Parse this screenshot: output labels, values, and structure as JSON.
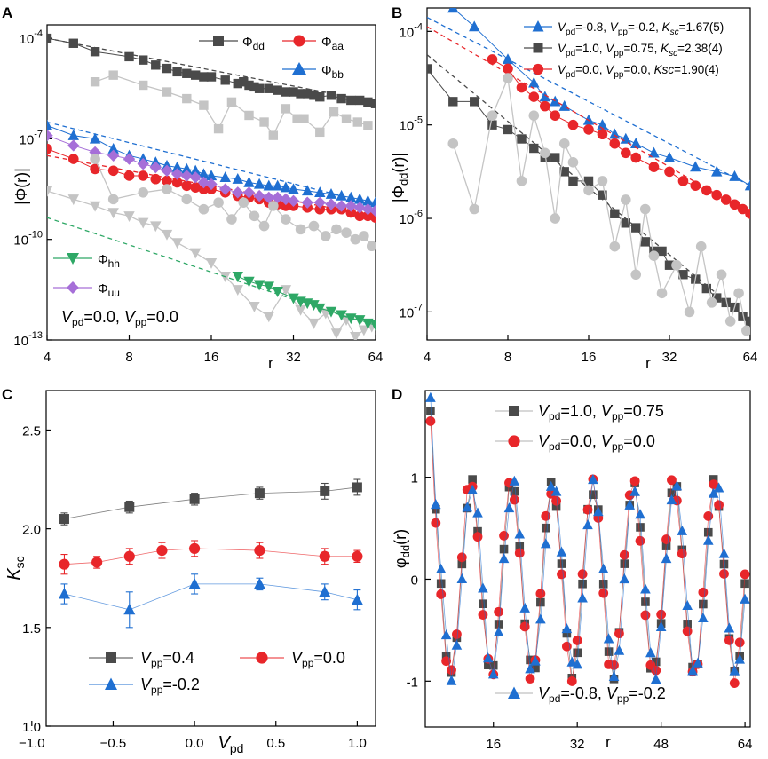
{
  "chart_data": [
    {
      "panel": "A",
      "type": "line",
      "scale": "log10-log2",
      "xlabel": "r",
      "ylabel": "|Φ(r)|",
      "xticks": [
        4,
        8,
        16,
        32,
        64
      ],
      "yticks": [
        {
          "value": -4,
          "label": "10",
          "sup": "-4"
        },
        {
          "value": -7,
          "label": "10",
          "sup": "-7"
        },
        {
          "value": -10,
          "label": "10",
          "sup": "-10"
        },
        {
          "value": -13,
          "label": "10",
          "sup": "-13"
        }
      ],
      "xlim": [
        4,
        64
      ],
      "ylim_log10": [
        -13,
        -3.6
      ],
      "annotation": {
        "V": "V",
        "pd": "pd",
        "eq1": "=0.0, ",
        "pp": "pp",
        "eq2": "=0.0"
      },
      "legend": [
        {
          "sym": "Φ",
          "sub": "dd"
        },
        {
          "sym": "Φ",
          "sub": "aa"
        },
        {
          "sym": "Φ",
          "sub": "bb"
        },
        {
          "sym": "Φ",
          "sub": "hh"
        },
        {
          "sym": "Φ",
          "sub": "uu"
        }
      ],
      "series": [
        {
          "name": "Φdd",
          "marker": "square",
          "color": "#4a4a4a",
          "fit": [
            [
              4,
              -4.0
            ],
            [
              64,
              -5.9
            ]
          ],
          "x": [
            4,
            5,
            6,
            8,
            9,
            10,
            11,
            12,
            13,
            14,
            15,
            16,
            18,
            20,
            21,
            22,
            23,
            24,
            26,
            28,
            30,
            32,
            34,
            36,
            38,
            40,
            44,
            48,
            52,
            56,
            60,
            64
          ],
          "y": [
            -4.0,
            -4.15,
            -4.4,
            -4.55,
            -4.65,
            -4.8,
            -4.9,
            -5.0,
            -5.05,
            -5.1,
            -5.15,
            -5.15,
            -5.25,
            -5.35,
            -5.3,
            -5.4,
            -5.45,
            -5.5,
            -5.5,
            -5.55,
            -5.6,
            -5.6,
            -5.65,
            -5.65,
            -5.7,
            -5.75,
            -5.7,
            -5.8,
            -5.85,
            -5.85,
            -5.9,
            -5.95
          ]
        },
        {
          "name": "Φdd gray",
          "marker": "square",
          "color": "#c4c4c4",
          "x": [
            6,
            7,
            9,
            11,
            13,
            15,
            17,
            19,
            22,
            25,
            27,
            30,
            33,
            35,
            40,
            45,
            50,
            55,
            60
          ],
          "y": [
            -5.3,
            -5.1,
            -5.4,
            -5.6,
            -5.8,
            -6.0,
            -6.7,
            -5.9,
            -6.3,
            -6.5,
            -6.9,
            -6.1,
            -6.4,
            -6.4,
            -6.8,
            -6.2,
            -6.4,
            -6.5,
            -6.6
          ]
        },
        {
          "name": "Φaa",
          "marker": "circle",
          "color": "#e8262a",
          "fit": [
            [
              4,
              -7.5
            ],
            [
              64,
              -9.3
            ]
          ],
          "x": [
            4,
            5,
            6,
            7,
            8,
            9,
            10,
            11,
            12,
            13,
            14,
            15,
            16,
            18,
            20,
            22,
            24,
            26,
            28,
            30,
            32,
            36,
            40,
            44,
            48,
            52,
            56,
            60,
            64
          ],
          "y": [
            -7.3,
            -7.6,
            -7.9,
            -7.95,
            -8.1,
            -8.1,
            -8.2,
            -8.25,
            -8.3,
            -8.4,
            -8.45,
            -8.5,
            -8.5,
            -8.6,
            -8.7,
            -8.75,
            -8.8,
            -8.9,
            -8.95,
            -9.0,
            -9.0,
            -9.05,
            -9.1,
            -9.1,
            -9.1,
            -9.2,
            -9.3,
            -9.3,
            -9.35
          ]
        },
        {
          "name": "Φbb",
          "marker": "triangle",
          "color": "#1f6fd1",
          "fit": [
            [
              4,
              -6.5
            ],
            [
              64,
              -8.95
            ]
          ],
          "x": [
            4,
            5,
            6,
            7,
            8,
            9,
            10,
            11,
            12,
            13,
            14,
            15,
            16,
            18,
            20,
            22,
            24,
            26,
            28,
            30,
            32,
            36,
            40,
            44,
            48,
            52,
            56,
            60,
            64
          ],
          "y": [
            -6.6,
            -6.9,
            -7.0,
            -7.3,
            -7.5,
            -7.6,
            -7.7,
            -7.8,
            -7.85,
            -7.9,
            -7.95,
            -8.05,
            -8.1,
            -8.15,
            -8.2,
            -8.3,
            -8.35,
            -8.4,
            -8.4,
            -8.45,
            -8.5,
            -8.55,
            -8.6,
            -8.65,
            -8.7,
            -8.75,
            -8.8,
            -8.85,
            -8.9
          ]
        },
        {
          "name": "Φuu",
          "marker": "diamond",
          "color": "#a66fd8",
          "x": [
            4,
            5,
            6,
            7,
            8,
            9,
            10,
            11,
            12,
            13,
            14,
            15,
            16,
            18,
            20,
            22,
            24,
            26,
            28,
            30,
            32,
            36,
            40,
            44,
            48,
            52,
            56,
            60,
            64
          ],
          "y": [
            -6.9,
            -7.2,
            -7.4,
            -7.5,
            -7.6,
            -7.75,
            -7.85,
            -7.95,
            -8.05,
            -8.1,
            -8.15,
            -8.3,
            -8.35,
            -8.5,
            -8.6,
            -8.6,
            -8.7,
            -8.75,
            -8.75,
            -8.8,
            -8.85,
            -8.9,
            -8.9,
            -8.95,
            -9.0,
            -9.0,
            -9.05,
            -9.1,
            -9.15
          ]
        },
        {
          "name": "Φaa gray",
          "marker": "circle",
          "color": "#c4c4c4",
          "x": [
            6,
            7,
            9,
            11,
            13,
            15,
            17,
            19,
            21,
            23,
            25,
            27,
            30,
            34,
            38,
            42,
            46,
            50,
            54,
            58,
            62
          ],
          "y": [
            -7.6,
            -8.8,
            -8.6,
            -8.5,
            -8.8,
            -9.1,
            -8.9,
            -9.4,
            -8.9,
            -9.3,
            -9.6,
            -9.0,
            -9.4,
            -9.7,
            -9.6,
            -9.9,
            -9.7,
            -9.8,
            -10.0,
            -9.9,
            -10.2
          ]
        },
        {
          "name": "Φhh gray",
          "marker": "triangle-down",
          "color": "#c4c4c4",
          "x": [
            4,
            5,
            6,
            7,
            8,
            9,
            10,
            11,
            12,
            14,
            16,
            18,
            20,
            23,
            26,
            30,
            34,
            38,
            42,
            46,
            50,
            54,
            58,
            62
          ],
          "y": [
            -8.55,
            -8.8,
            -9.0,
            -9.2,
            -9.3,
            -9.5,
            -9.6,
            -9.85,
            -10.1,
            -10.4,
            -10.7,
            -11.1,
            -11.5,
            -12.0,
            -12.3,
            -11.5,
            -12.1,
            -12.5,
            -12.2,
            -12.8,
            -12.4,
            -12.9,
            -12.7,
            -12.6
          ]
        },
        {
          "name": "Φhh",
          "marker": "triangle-down",
          "color": "#2ea866",
          "fit": [
            [
              4,
              -9.35
            ],
            [
              64,
              -12.6
            ]
          ],
          "x": [
            20,
            22,
            24,
            26,
            28,
            32,
            34,
            36,
            38,
            40,
            44,
            48,
            52,
            56,
            60,
            64
          ],
          "y": [
            -11.1,
            -11.25,
            -11.35,
            -11.4,
            -11.55,
            -11.75,
            -11.85,
            -11.9,
            -11.95,
            -12.05,
            -12.15,
            -12.25,
            -12.35,
            -12.4,
            -12.5,
            -12.55
          ]
        }
      ]
    },
    {
      "panel": "B",
      "type": "line",
      "scale": "log10-log2",
      "xlabel": "r",
      "ylabel": "|Φ_dd(r)|",
      "xticks": [
        4,
        8,
        16,
        32,
        64
      ],
      "yticks": [
        {
          "value": -4,
          "label": "10",
          "sup": "-4"
        },
        {
          "value": -5,
          "label": "10",
          "sup": "-5"
        },
        {
          "value": -6,
          "label": "10",
          "sup": "-6"
        },
        {
          "value": -7,
          "label": "10",
          "sup": "-7"
        }
      ],
      "xlim": [
        4,
        64
      ],
      "ylim_log10": [
        -7.3,
        -3.75
      ],
      "legend": [
        {
          "color": "#1f6fd1",
          "marker": "triangle",
          "a": "=-0.8, ",
          "b": "=-0.2, ",
          "c": "=1.67(5)",
          "kscItalicSub": true
        },
        {
          "color": "#4a4a4a",
          "marker": "square",
          "a": "=1.0, ",
          "b": "=0.75, ",
          "c": "=2.38(4)",
          "kscItalicSub": true
        },
        {
          "color": "#e8262a",
          "marker": "circle",
          "a": "=0.0, ",
          "b": "=0.0, ",
          "c": "=1.90(4)",
          "kscItalicSub": false
        }
      ],
      "series": [
        {
          "name": "Vpd=-0.8, Vpp=-0.2",
          "marker": "triangle",
          "color": "#1f6fd1",
          "fit": [
            [
              4,
              -3.85
            ],
            [
              64,
              -5.65
            ]
          ],
          "x": [
            5,
            6,
            8,
            10,
            11,
            12,
            13,
            16,
            18,
            20,
            22,
            24,
            28,
            32,
            40,
            48,
            56,
            64
          ],
          "y": [
            -3.75,
            -3.95,
            -4.3,
            -4.55,
            -4.7,
            -4.75,
            -4.8,
            -4.95,
            -5.0,
            -5.1,
            -5.15,
            -5.2,
            -5.3,
            -5.35,
            -5.45,
            -5.5,
            -5.55,
            -5.65
          ]
        },
        {
          "name": "Vpd=0.0, Vpp=0.0",
          "marker": "circle",
          "color": "#e8262a",
          "fit": [
            [
              4,
              -3.95
            ],
            [
              64,
              -5.95
            ]
          ],
          "x": [
            7,
            8,
            9,
            10,
            11,
            12,
            14,
            16,
            18,
            20,
            22,
            24,
            28,
            32,
            36,
            40,
            44,
            48,
            52,
            56,
            60,
            64
          ],
          "y": [
            -4.3,
            -4.4,
            -4.6,
            -4.7,
            -4.8,
            -4.9,
            -5.0,
            -5.05,
            -5.1,
            -5.2,
            -5.3,
            -5.35,
            -5.45,
            -5.5,
            -5.6,
            -5.65,
            -5.7,
            -5.75,
            -5.8,
            -5.85,
            -5.9,
            -5.95
          ]
        },
        {
          "name": "Vpd=1.0, Vpp=0.75",
          "marker": "square",
          "color": "#4a4a4a",
          "fit": [
            [
              4,
              -4.25
            ],
            [
              64,
              -7.1
            ]
          ],
          "x": [
            4,
            5,
            6,
            7,
            8,
            9,
            10,
            11,
            12,
            13,
            14,
            16,
            18,
            20,
            22,
            24,
            26,
            28,
            30,
            32,
            36,
            40,
            44,
            48,
            52,
            56,
            60,
            64
          ],
          "y": [
            -4.4,
            -4.75,
            -4.75,
            -5.0,
            -5.05,
            -5.15,
            -5.25,
            -5.35,
            -5.35,
            -5.5,
            -5.6,
            -5.6,
            -5.75,
            -5.95,
            -6.05,
            -6.1,
            -6.25,
            -6.35,
            -6.35,
            -6.5,
            -6.6,
            -6.65,
            -6.75,
            -6.85,
            -6.9,
            -6.95,
            -7.05,
            -7.1
          ]
        },
        {
          "name": "gray",
          "marker": "circle",
          "color": "#c4c4c4",
          "x": [
            5,
            6,
            7,
            8,
            9,
            10,
            11,
            12,
            13,
            14,
            16,
            18,
            20,
            22,
            24,
            26,
            28,
            30,
            34,
            38,
            42,
            46,
            50,
            54,
            58,
            62
          ],
          "y": [
            -5.2,
            -5.9,
            -4.9,
            -4.5,
            -5.6,
            -4.9,
            -5.3,
            -6.0,
            -5.2,
            -5.4,
            -5.7,
            -5.6,
            -6.3,
            -5.8,
            -6.6,
            -5.9,
            -6.4,
            -6.8,
            -6.5,
            -7.0,
            -6.3,
            -6.9,
            -6.6,
            -7.1,
            -6.8,
            -7.2
          ]
        }
      ]
    },
    {
      "panel": "C",
      "type": "scatter",
      "xlabel": "V_pd",
      "ylabel": "K_sc",
      "xlim": [
        -1.0,
        1.0
      ],
      "ylim": [
        1.0,
        2.7
      ],
      "xticks": [
        "−1.0",
        "−0.5",
        "0.0",
        "0.5",
        "1.0"
      ],
      "xtick_values": [
        -1.0,
        -0.5,
        0.0,
        0.5,
        1.0
      ],
      "yticks": [
        "1.0",
        "1.5",
        "2.0",
        "2.5"
      ],
      "ytick_values": [
        1.0,
        1.5,
        2.0,
        2.5
      ],
      "legend": [
        {
          "label": "=0.4"
        },
        {
          "label": "=0.0"
        },
        {
          "label": "=-0.2"
        }
      ],
      "series": [
        {
          "name": "Vpp=0.4",
          "marker": "square",
          "color": "#4a4a4a",
          "x": [
            -0.8,
            -0.4,
            0.0,
            0.4,
            0.8,
            1.0
          ],
          "y": [
            2.05,
            2.11,
            2.15,
            2.18,
            2.19,
            2.21
          ],
          "err": [
            0.03,
            0.03,
            0.03,
            0.03,
            0.04,
            0.04
          ]
        },
        {
          "name": "Vpp=0.0",
          "marker": "circle",
          "color": "#e8262a",
          "x": [
            -0.8,
            -0.6,
            -0.4,
            -0.2,
            0.0,
            0.4,
            0.8,
            1.0
          ],
          "y": [
            1.82,
            1.83,
            1.86,
            1.89,
            1.9,
            1.89,
            1.86,
            1.86
          ],
          "err": [
            0.05,
            0.03,
            0.04,
            0.04,
            0.04,
            0.04,
            0.04,
            0.03
          ]
        },
        {
          "name": "Vpp=-0.2",
          "marker": "triangle",
          "color": "#1f6fd1",
          "x": [
            -0.8,
            -0.4,
            0.0,
            0.4,
            0.8,
            1.0
          ],
          "y": [
            1.67,
            1.59,
            1.72,
            1.72,
            1.68,
            1.64
          ],
          "err": [
            0.05,
            0.09,
            0.05,
            0.03,
            0.04,
            0.05
          ]
        }
      ]
    },
    {
      "panel": "D",
      "type": "line",
      "xlabel": "r",
      "ylabel": "φ_dd(r)",
      "xlim": [
        3,
        65
      ],
      "ylim": [
        -1.45,
        1.85
      ],
      "xticks": [
        "16",
        "32",
        "48",
        "64"
      ],
      "xtick_values": [
        16,
        32,
        48,
        64
      ],
      "yticks": [
        "1",
        "0",
        "-1"
      ],
      "ytick_values": [
        1,
        0,
        -1
      ],
      "legend": [
        {
          "a": "=1.0, ",
          "b": "=0.75",
          "marker": "square"
        },
        {
          "a": "=0.0, ",
          "b": "=0.0",
          "marker": "circle"
        },
        {
          "a": "=-0.8, ",
          "b": "=-0.2",
          "marker": "triangle"
        }
      ],
      "period": 7.75,
      "series": [
        {
          "name": "Vpd=1.0, Vpp=0.75",
          "marker": "square",
          "color": "#4a4a4a",
          "amp": 1.0,
          "phase": 0.0
        },
        {
          "name": "Vpd=0.0, Vpp=0.0",
          "marker": "circle",
          "color": "#e8262a",
          "amp": 1.02,
          "phase": 0.1
        },
        {
          "name": "Vpd=-0.8, Vpp=-0.2",
          "marker": "triangle",
          "color": "#1f6fd1",
          "amp": 1.0,
          "phase": -0.15
        }
      ]
    }
  ],
  "panel_labels": {
    "A": "A",
    "B": "B",
    "C": "C",
    "D": "D"
  }
}
